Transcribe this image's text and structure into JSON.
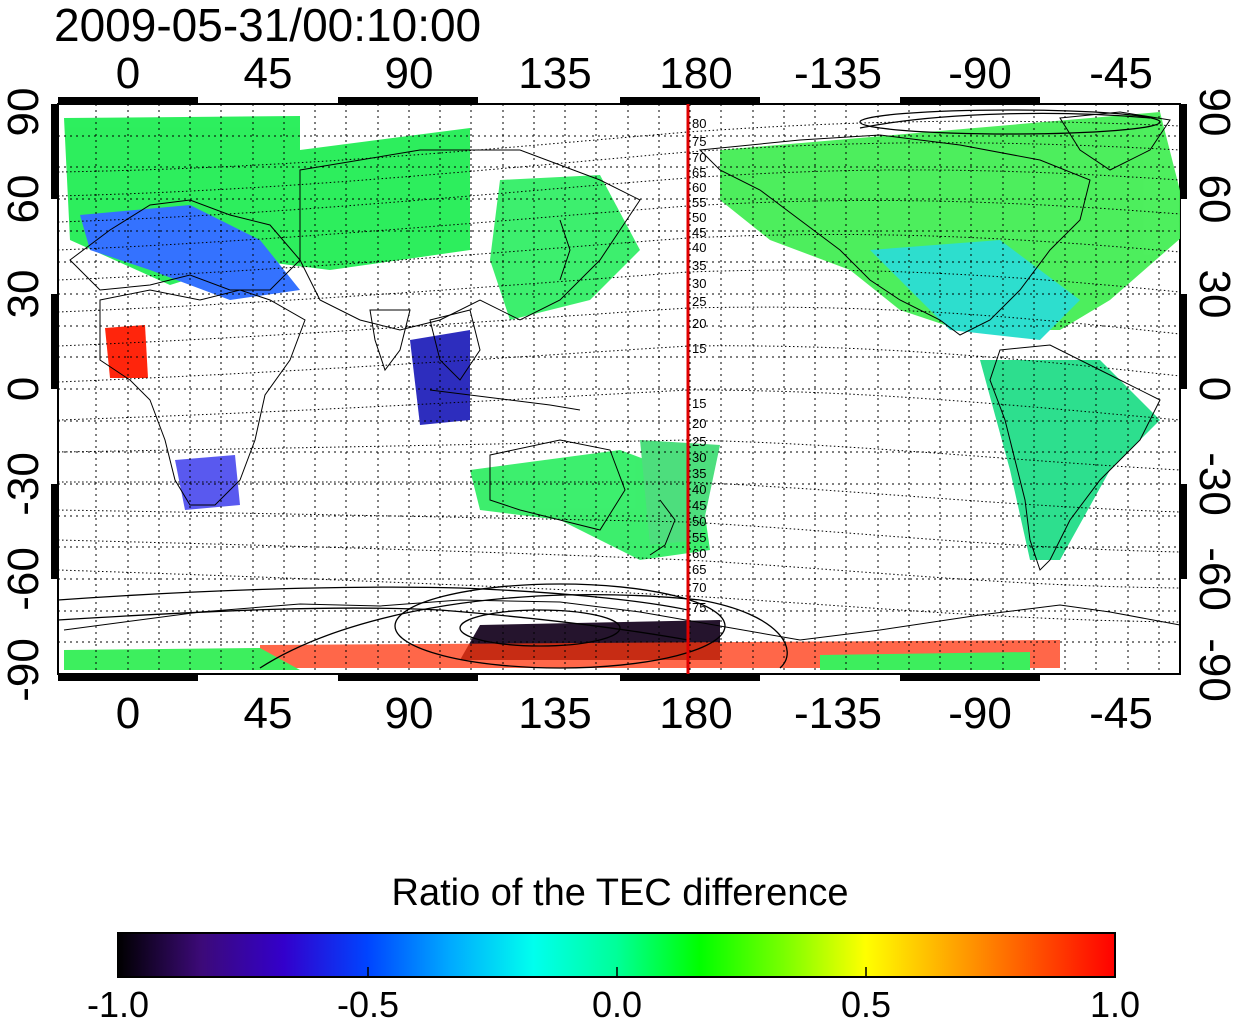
{
  "title": "2009-05-31/00:10:00",
  "map": {
    "top_lon_labels": [
      "0",
      "45",
      "90",
      "135",
      "180",
      "-135",
      "-90",
      "-45"
    ],
    "bottom_lon_labels": [
      "0",
      "45",
      "90",
      "135",
      "180",
      "-135",
      "-90",
      "-45"
    ],
    "left_lat_labels": [
      "90",
      "60",
      "30",
      "0",
      "-30",
      "-60",
      "-90"
    ],
    "right_lat_labels": [
      "90",
      "60",
      "30",
      "0",
      "-30",
      "-60",
      "-90"
    ],
    "meridian_marker": {
      "longitude": 180,
      "color": "#e00000"
    },
    "contour_labels_north": [
      "80",
      "75",
      "70",
      "65",
      "60",
      "55",
      "50",
      "45",
      "40",
      "35",
      "30",
      "25",
      "20",
      "15"
    ],
    "contour_labels_south": [
      "15",
      "20",
      "25",
      "30",
      "35",
      "40",
      "45",
      "50",
      "55",
      "60",
      "65",
      "70",
      "75"
    ]
  },
  "colorbar": {
    "title": "Ratio of the TEC difference",
    "tick_labels": [
      "-1.0",
      "-0.5",
      "0.0",
      "0.5",
      "1.0"
    ],
    "range": [
      -1.0,
      1.0
    ],
    "colors": [
      "#000000",
      "#3c0a78",
      "#3300cc",
      "#0044ff",
      "#00aaff",
      "#00ffee",
      "#00ff99",
      "#00ff00",
      "#77ff00",
      "#ffff00",
      "#ffaa00",
      "#ff5500",
      "#ff0000"
    ]
  }
}
